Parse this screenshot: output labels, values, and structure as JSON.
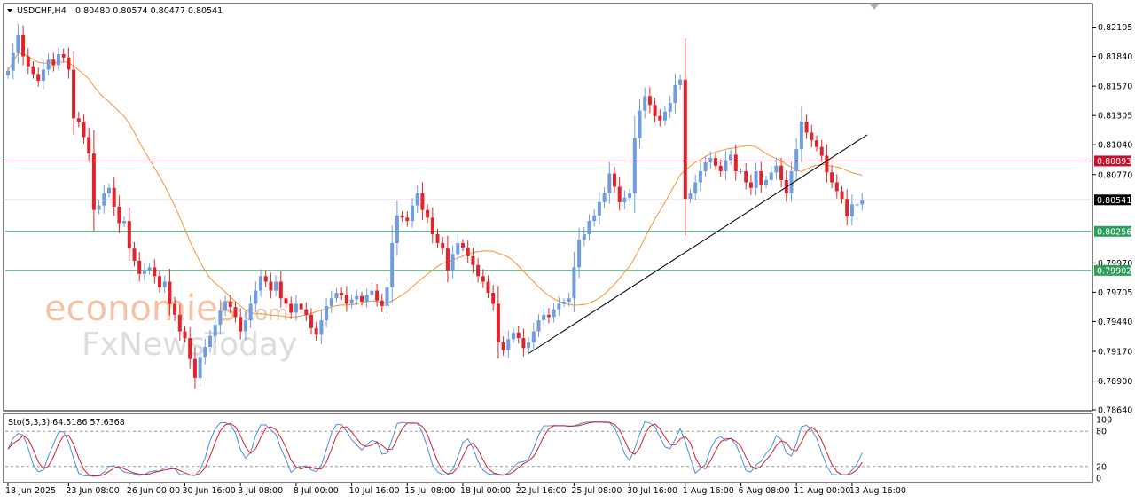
{
  "chart_data": {
    "type": "candlestick",
    "title": "USDCHF,H4",
    "ohlc_header": "0.80480 0.80574 0.80477 0.80541",
    "watermark": {
      "line1": "economies",
      "line1_suffix": ".com",
      "line2": "FxNewsToday"
    },
    "colors": {
      "bull": "#6f9ddf",
      "bear": "#e0242a",
      "ma": "#f0962f",
      "resistance": "#c8102e",
      "support": "#2e9e5b",
      "current": "#000000",
      "stoch_main": "#4a8fdd",
      "stoch_signal": "#d0202a"
    },
    "price_axis": {
      "ylim": [
        0.7864,
        0.8231
      ],
      "ticks": [
        "0.82105",
        "0.81840",
        "0.81570",
        "0.81305",
        "0.81040",
        "0.80770",
        "0.79970",
        "0.79705",
        "0.79440",
        "0.79170",
        "0.78900",
        "0.78640"
      ],
      "tick_values": [
        0.82105,
        0.8184,
        0.8157,
        0.81305,
        0.8104,
        0.8077,
        0.7997,
        0.79705,
        0.7944,
        0.7917,
        0.789,
        0.7864
      ]
    },
    "levels": [
      {
        "name": "resistance",
        "value": 0.80893,
        "label": "0.80893"
      },
      {
        "name": "current",
        "value": 0.80541,
        "label": "0.80541"
      },
      {
        "name": "support-1",
        "value": 0.80256,
        "label": "0.80256"
      },
      {
        "name": "support-2",
        "value": 0.79902,
        "label": "0.79902"
      }
    ],
    "trendline": {
      "from": {
        "bar": 103,
        "value": 0.7915
      },
      "to": {
        "bar": 170,
        "value": 0.8113
      }
    },
    "x_labels": [
      {
        "bar": 0,
        "label": "18 Jun 2025"
      },
      {
        "bar": 12,
        "label": "23 Jun 08:00"
      },
      {
        "bar": 24,
        "label": "26 Jun 00:00"
      },
      {
        "bar": 35,
        "label": "30 Jun 16:00"
      },
      {
        "bar": 46,
        "label": "3 Jul 08:00"
      },
      {
        "bar": 57,
        "label": "8 Jul 00:00"
      },
      {
        "bar": 68,
        "label": "10 Jul 16:00"
      },
      {
        "bar": 79,
        "label": "15 Jul 08:00"
      },
      {
        "bar": 90,
        "label": "18 Jul 00:00"
      },
      {
        "bar": 101,
        "label": "22 Jul 16:00"
      },
      {
        "bar": 112,
        "label": "25 Jul 08:00"
      },
      {
        "bar": 123,
        "label": "30 Jul 16:00"
      },
      {
        "bar": 134,
        "label": "1 Aug 16:00"
      },
      {
        "bar": 145,
        "label": "6 Aug 08:00"
      },
      {
        "bar": 156,
        "label": "11 Aug 00:00"
      },
      {
        "bar": 167,
        "label": "13 Aug 16:00"
      }
    ],
    "closes": [
      0.8171,
      0.8187,
      0.8203,
      0.8184,
      0.8175,
      0.8168,
      0.8162,
      0.8172,
      0.8181,
      0.8176,
      0.8186,
      0.8183,
      0.8172,
      0.8128,
      0.8125,
      0.8111,
      0.8096,
      0.8045,
      0.8049,
      0.806,
      0.8065,
      0.8048,
      0.8033,
      0.8035,
      0.801,
      0.7999,
      0.7987,
      0.799,
      0.7993,
      0.7985,
      0.7975,
      0.798,
      0.796,
      0.795,
      0.7935,
      0.7929,
      0.791,
      0.7893,
      0.7912,
      0.7921,
      0.7931,
      0.7941,
      0.7954,
      0.7962,
      0.7957,
      0.7948,
      0.7935,
      0.7945,
      0.796,
      0.7972,
      0.7985,
      0.798,
      0.7972,
      0.798,
      0.7965,
      0.796,
      0.7952,
      0.796,
      0.7955,
      0.795,
      0.7938,
      0.7932,
      0.7945,
      0.7958,
      0.7965,
      0.797,
      0.7968,
      0.796,
      0.7964,
      0.7967,
      0.7962,
      0.7968,
      0.7972,
      0.7963,
      0.7958,
      0.7975,
      0.8015,
      0.804,
      0.8038,
      0.8035,
      0.8049,
      0.806,
      0.8045,
      0.8038,
      0.8023,
      0.8015,
      0.801,
      0.799,
      0.8005,
      0.8015,
      0.8011,
      0.8003,
      0.7995,
      0.7985,
      0.798,
      0.797,
      0.796,
      0.7925,
      0.7918,
      0.7928,
      0.7934,
      0.7929,
      0.792,
      0.7925,
      0.7935,
      0.7945,
      0.795,
      0.7948,
      0.7955,
      0.796,
      0.7962,
      0.7965,
      0.7993,
      0.8018,
      0.8023,
      0.8035,
      0.804,
      0.8052,
      0.806,
      0.8078,
      0.8066,
      0.8052,
      0.8056,
      0.806,
      0.811,
      0.8135,
      0.8148,
      0.814,
      0.813,
      0.8126,
      0.8134,
      0.8142,
      0.8158,
      0.8163,
      0.8055,
      0.806,
      0.807,
      0.808,
      0.8088,
      0.8092,
      0.8085,
      0.808,
      0.809,
      0.8095,
      0.808,
      0.808,
      0.807,
      0.8065,
      0.808,
      0.8068,
      0.8072,
      0.8079,
      0.8085,
      0.8072,
      0.806,
      0.808,
      0.81,
      0.8125,
      0.8115,
      0.8108,
      0.8102,
      0.8094,
      0.8079,
      0.807,
      0.8062,
      0.8055,
      0.8039,
      0.805,
      0.805,
      0.8054
    ],
    "stoch_title": "Sto(5,3,3) 64.5186 57.6368",
    "stoch_axis": {
      "ylim": [
        0,
        100
      ],
      "ticks": [
        "100",
        "80",
        "20",
        "0"
      ],
      "tick_values": [
        100,
        80,
        20,
        0
      ],
      "levels": [
        80,
        20
      ]
    }
  }
}
